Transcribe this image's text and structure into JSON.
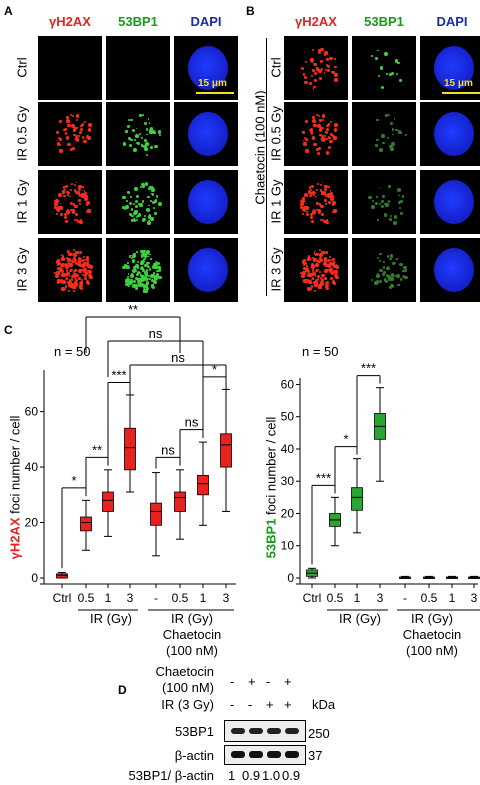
{
  "panelA": {
    "letter": "A",
    "headers": [
      "γH2AX",
      "53BP1",
      "DAPI"
    ],
    "rows": [
      "Ctrl",
      "IR 0.5 Gy",
      "IR 1 Gy",
      "IR 3 Gy"
    ],
    "scale": "15 μm"
  },
  "panelB": {
    "letter": "B",
    "headers": [
      "γH2AX",
      "53BP1",
      "DAPI"
    ],
    "rows": [
      "Ctrl",
      "IR 0.5 Gy",
      "IR 1 Gy",
      "IR 3 Gy"
    ],
    "scale": "15 μm",
    "treatment": "Chaetocin (100 nM)"
  },
  "panelC": {
    "letter": "C",
    "left": {
      "n": "n = 50",
      "ylabel_color_part": "γH2AX",
      "ylabel_rest": " foci number / cell",
      "xgroup1": "IR (Gy)",
      "xgroup2_line1": "IR (Gy)",
      "xgroup2_line2": "Chaetocin",
      "xgroup2_line3": "(100 nM)"
    },
    "right": {
      "n": "n = 50",
      "ylabel_color_part": "53BP1",
      "ylabel_rest": " foci number / cell",
      "xgroup1": "IR (Gy)",
      "xgroup2_line1": "IR (Gy)",
      "xgroup2_line2": "Chaetocin",
      "xgroup2_line3": "(100 nM)"
    }
  },
  "chart_data": [
    {
      "type": "box",
      "ylabel": "γH2AX foci number / cell",
      "ylim": [
        0,
        75
      ],
      "yticks": [
        0,
        20,
        40,
        60
      ],
      "categories": [
        "Ctrl",
        "0.5",
        "1",
        "3",
        "-",
        "0.5",
        "1",
        "3"
      ],
      "color": "#e8231f",
      "boxes": [
        {
          "min": 0,
          "q1": 0,
          "median": 1,
          "q3": 1.5,
          "max": 2
        },
        {
          "min": 10,
          "q1": 17,
          "median": 20,
          "q3": 22,
          "max": 28
        },
        {
          "min": 15,
          "q1": 24,
          "median": 28,
          "q3": 31,
          "max": 39
        },
        {
          "min": 31,
          "q1": 39,
          "median": 47,
          "q3": 54,
          "max": 66
        },
        {
          "min": 8,
          "q1": 19,
          "median": 24,
          "q3": 27,
          "max": 38
        },
        {
          "min": 14,
          "q1": 24,
          "median": 29,
          "q3": 31,
          "max": 39
        },
        {
          "min": 19,
          "q1": 30,
          "median": 34,
          "q3": 37,
          "max": 49
        },
        {
          "min": 24,
          "q1": 40,
          "median": 48,
          "q3": 52,
          "max": 68
        }
      ],
      "significance": [
        {
          "from": 0,
          "to": 1,
          "label": "*"
        },
        {
          "from": 1,
          "to": 2,
          "label": "**"
        },
        {
          "from": 2,
          "to": 3,
          "label": "***"
        },
        {
          "from": 4,
          "to": 5,
          "label": "ns"
        },
        {
          "from": 5,
          "to": 6,
          "label": "ns"
        },
        {
          "from": 6,
          "to": 7,
          "label": "*"
        },
        {
          "from": 1,
          "to": 5,
          "label": "**"
        },
        {
          "from": 2,
          "to": 6,
          "label": "ns"
        },
        {
          "from": 3,
          "to": 7,
          "label": "ns"
        }
      ]
    },
    {
      "type": "box",
      "ylabel": "53BP1 foci number / cell",
      "ylim": [
        0,
        62
      ],
      "yticks": [
        0,
        10,
        20,
        30,
        40,
        50,
        60
      ],
      "categories": [
        "Ctrl",
        "0.5",
        "1",
        "3",
        "-",
        "0.5",
        "1",
        "3"
      ],
      "color": "#2aa532",
      "boxes": [
        {
          "min": 0,
          "q1": 0.5,
          "median": 1.5,
          "q3": 2.5,
          "max": 3
        },
        {
          "min": 10,
          "q1": 16,
          "median": 18,
          "q3": 20,
          "max": 25
        },
        {
          "min": 14,
          "q1": 21,
          "median": 25,
          "q3": 28,
          "max": 37
        },
        {
          "min": 30,
          "q1": 43,
          "median": 47,
          "q3": 51,
          "max": 59
        },
        {
          "min": 0,
          "q1": 0,
          "median": 0,
          "q3": 0.3,
          "max": 0.5
        },
        {
          "min": 0,
          "q1": 0,
          "median": 0,
          "q3": 0.3,
          "max": 0.5
        },
        {
          "min": 0,
          "q1": 0,
          "median": 0,
          "q3": 0.3,
          "max": 0.5
        },
        {
          "min": 0,
          "q1": 0,
          "median": 0,
          "q3": 0.3,
          "max": 0.5
        }
      ],
      "significance": [
        {
          "from": 0,
          "to": 1,
          "label": "***"
        },
        {
          "from": 1,
          "to": 2,
          "label": "*"
        },
        {
          "from": 2,
          "to": 3,
          "label": "***"
        }
      ]
    }
  ],
  "panelD": {
    "letter": "D",
    "chaetocin_label": "Chaetocin",
    "chaetocin_label2": "(100 nM)",
    "ir_label": "IR (3 Gy)",
    "chaetocin_signs": [
      "-",
      "+",
      "-",
      "+"
    ],
    "ir_signs": [
      "-",
      "-",
      "+",
      "+"
    ],
    "kda": "kDa",
    "bands": [
      {
        "name": "53BP1",
        "kda": "250"
      },
      {
        "name": "β-actin",
        "kda": "37"
      }
    ],
    "ratio_label": "53BP1/ β-actin",
    "ratios": [
      "1",
      "0.9",
      "1.0",
      "0.9"
    ]
  }
}
